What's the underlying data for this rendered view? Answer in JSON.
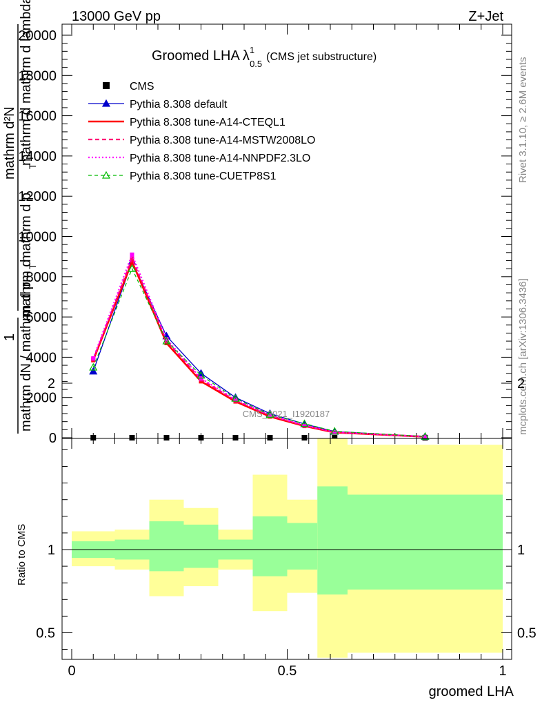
{
  "header": {
    "left": "13000 GeV pp",
    "right": "Z+Jet"
  },
  "side_text": {
    "rivet": "Rivet 3.1.10, ≥ 2.6M events",
    "mcplots": "mcplots.cern.ch [arXiv:1306.3436]"
  },
  "chart_data": [
    {
      "type": "line",
      "title_main": "Groomed LHA",
      "title_lambda": "λ",
      "title_sup": "1",
      "title_sub": "0.5",
      "title_note": "(CMS jet substructure)",
      "ylabel_top": "mathrm d²N",
      "ylabel_top_b": "mathrm d p",
      "ylabel_top_c": "T",
      "ylabel_top_d": "mathrm d mathrm d lambda",
      "ylabel_one": "1",
      "ylabel_bottom": "mathrm dN / mathrm d p",
      "ylabel_bottom_b": "T",
      "ylabel_bottom_c": "mathrm d",
      "watermark": "CMS_2021_I1920187",
      "ylim": [
        0,
        20500
      ],
      "y_ticks": [
        0,
        2000,
        4000,
        6000,
        8000,
        10000,
        12000,
        14000,
        16000,
        18000,
        20000
      ],
      "y_tick_labels": [
        "0",
        "2000",
        "4000",
        "6000",
        "8000",
        "10000",
        "12000",
        "14000",
        "16000",
        "18000",
        "20000"
      ],
      "xlim": [
        0,
        1
      ],
      "x": [
        0.05,
        0.14,
        0.22,
        0.3,
        0.38,
        0.46,
        0.54,
        0.61,
        0.82
      ],
      "series": [
        {
          "name": "CMS",
          "style": "data",
          "color": "#000000",
          "values": [
            0,
            0,
            0,
            0,
            0,
            0,
            0,
            0,
            0
          ]
        },
        {
          "name": "Pythia 8.308 default",
          "style": "solid-triangle",
          "color": "#0000cc",
          "values": [
            3300,
            8750,
            5050,
            3200,
            2000,
            1200,
            680,
            310,
            60
          ]
        },
        {
          "name": "Pythia 8.308 tune-A14-CTEQL1",
          "style": "solid-thick",
          "color": "#ff0000",
          "values": [
            3850,
            8750,
            4700,
            2800,
            1800,
            1050,
            580,
            260,
            50
          ]
        },
        {
          "name": "Pythia 8.308 tune-A14-MSTW2008LO",
          "style": "dashed",
          "color": "#ff0077",
          "values": [
            3900,
            8900,
            4800,
            2900,
            1850,
            1100,
            600,
            270,
            52
          ]
        },
        {
          "name": "Pythia 8.308 tune-A14-NNPDF2.3LO",
          "style": "dotted",
          "color": "#ff00ff",
          "values": [
            3950,
            9100,
            4900,
            2950,
            1900,
            1120,
            620,
            280,
            55
          ]
        },
        {
          "name": "Pythia 8.308 tune-CUETP8S1",
          "style": "dashed-open-triangle",
          "color": "#00bb00",
          "values": [
            3500,
            8400,
            4800,
            3100,
            1950,
            1150,
            700,
            320,
            62
          ]
        }
      ]
    },
    {
      "type": "band",
      "ylabel": "Ratio to CMS",
      "xlabel": "groomed LHA",
      "ylim": [
        0.35,
        2.3
      ],
      "y_ticks": [
        0.5,
        1,
        2
      ],
      "y_tick_labels": [
        "0.5",
        "1",
        "2"
      ],
      "x_ticks": [
        0,
        0.5,
        1
      ],
      "x_tick_labels": [
        "0",
        "0.5",
        "1"
      ],
      "reference": 1,
      "bins": [
        {
          "lo": 0.0,
          "hi": 0.1,
          "inner": [
            0.95,
            1.05
          ],
          "outer": [
            0.9,
            1.11
          ]
        },
        {
          "lo": 0.1,
          "hi": 0.18,
          "inner": [
            0.94,
            1.06
          ],
          "outer": [
            0.88,
            1.12
          ]
        },
        {
          "lo": 0.18,
          "hi": 0.26,
          "inner": [
            0.87,
            1.17
          ],
          "outer": [
            0.72,
            1.3
          ]
        },
        {
          "lo": 0.26,
          "hi": 0.34,
          "inner": [
            0.89,
            1.15
          ],
          "outer": [
            0.78,
            1.25
          ]
        },
        {
          "lo": 0.34,
          "hi": 0.42,
          "inner": [
            0.94,
            1.06
          ],
          "outer": [
            0.88,
            1.12
          ]
        },
        {
          "lo": 0.42,
          "hi": 0.5,
          "inner": [
            0.84,
            1.2
          ],
          "outer": [
            0.63,
            1.45
          ]
        },
        {
          "lo": 0.5,
          "hi": 0.57,
          "inner": [
            0.88,
            1.16
          ],
          "outer": [
            0.74,
            1.3
          ]
        },
        {
          "lo": 0.57,
          "hi": 0.64,
          "inner": [
            0.73,
            1.38
          ],
          "outer": [
            0.35,
            1.7
          ]
        },
        {
          "lo": 0.64,
          "hi": 1.0,
          "inner": [
            0.76,
            1.33
          ],
          "outer": [
            0.38,
            1.63
          ]
        }
      ],
      "inner_color": "#99ff99",
      "outer_color": "#ffff99"
    }
  ]
}
